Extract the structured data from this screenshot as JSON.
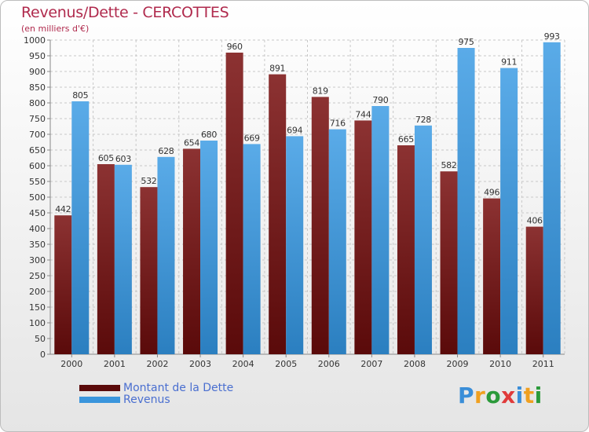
{
  "title": "Revenus/Dette - CERCOTTES",
  "subtitle": "(en milliers d'€)",
  "colors": {
    "title": "#b02a4d",
    "dette_dark": "#5a0a0a",
    "dette_light": "#8c3232",
    "revenus_dark": "#2b7fc0",
    "revenus_light": "#5aabe8",
    "grid": "#c8c8c8"
  },
  "logo": {
    "text": "Proxiti",
    "letters": [
      "P",
      "r",
      "o",
      "x",
      "i",
      "t",
      "i"
    ],
    "letter_colors": [
      "#3a8ed8",
      "#f0a020",
      "#2b9a3a",
      "#e03a3a",
      "#3a8ed8",
      "#f0a020",
      "#2b9a3a"
    ]
  },
  "chart_data": {
    "type": "bar",
    "categories": [
      "2000",
      "2001",
      "2002",
      "2003",
      "2004",
      "2005",
      "2006",
      "2007",
      "2008",
      "2009",
      "2010",
      "2011"
    ],
    "series": [
      {
        "name": "Montant de la Dette",
        "values": [
          442,
          605,
          532,
          654,
          960,
          891,
          819,
          744,
          665,
          582,
          496,
          406
        ]
      },
      {
        "name": "Revenus",
        "values": [
          805,
          603,
          628,
          680,
          669,
          694,
          716,
          790,
          728,
          975,
          911,
          993
        ]
      }
    ],
    "ylim": [
      0,
      1000
    ],
    "yticks": [
      0,
      50,
      100,
      150,
      200,
      250,
      300,
      350,
      400,
      450,
      500,
      550,
      600,
      650,
      700,
      750,
      800,
      850,
      900,
      950,
      1000
    ],
    "grid": true,
    "legend": "bottom-left"
  }
}
